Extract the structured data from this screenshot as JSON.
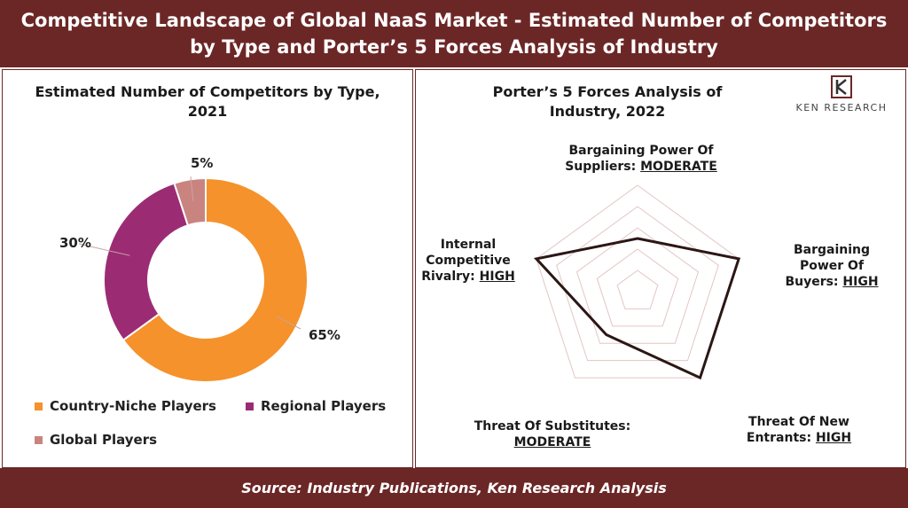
{
  "header": {
    "title": "Competitive Landscape of Global NaaS Market - Estimated Number of Competitors by Type and Porter’s 5 Forces Analysis of Industry"
  },
  "footer": {
    "source": "Source: Industry Publications, Ken Research Analysis"
  },
  "logo": {
    "text": "KEN RESEARCH"
  },
  "colors": {
    "brand": "#6b2726",
    "country_niche": "#f5922b",
    "regional": "#9b2c74",
    "global": "#c98480"
  },
  "chart_data": [
    {
      "type": "pie",
      "subtype": "donut",
      "title": "Estimated Number of Competitors by Type, 2021",
      "categories": [
        "Country-Niche Players",
        "Regional Players",
        "Global Players"
      ],
      "values": [
        65,
        30,
        5
      ],
      "value_labels": [
        "65%",
        "30%",
        "5%"
      ],
      "colors": [
        "#f5922b",
        "#9b2c74",
        "#c98480"
      ]
    },
    {
      "type": "radar",
      "title": "Porter’s 5 Forces Analysis of Industry, 2022",
      "axes": [
        {
          "name": "Bargaining Power Of Suppliers:",
          "level": "MODERATE",
          "value": 0.5
        },
        {
          "name": "Bargaining Power Of Buyers:",
          "level": "HIGH",
          "value": 1.0
        },
        {
          "name": "Threat Of New Entrants:",
          "level": "HIGH",
          "value": 1.0
        },
        {
          "name": "Threat Of Substitutes:",
          "level": "MODERATE",
          "value": 0.5
        },
        {
          "name": "Internal Competitive Rivalry:",
          "level": "HIGH",
          "value": 1.0
        }
      ],
      "grid_levels": 5
    }
  ]
}
